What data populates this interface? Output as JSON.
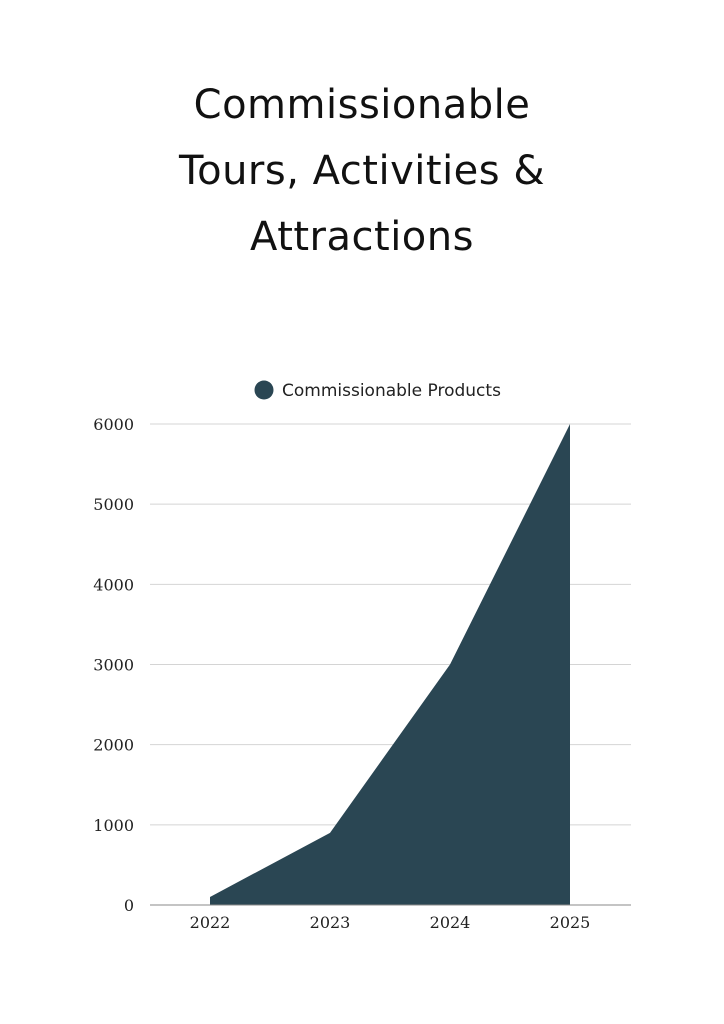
{
  "title_lines": [
    "Commissionable",
    "Tours, Activities &",
    "Attractions"
  ],
  "chart_data": {
    "type": "area",
    "x": [
      "2022",
      "2023",
      "2024",
      "2025"
    ],
    "series": [
      {
        "name": "Commissionable Products",
        "values": [
          100,
          900,
          3000,
          6000
        ]
      }
    ],
    "ylim": [
      0,
      6000
    ],
    "yticks": [
      0,
      1000,
      2000,
      3000,
      4000,
      5000,
      6000
    ],
    "grid": true,
    "legend": "top-center",
    "color": "#2a4653"
  }
}
